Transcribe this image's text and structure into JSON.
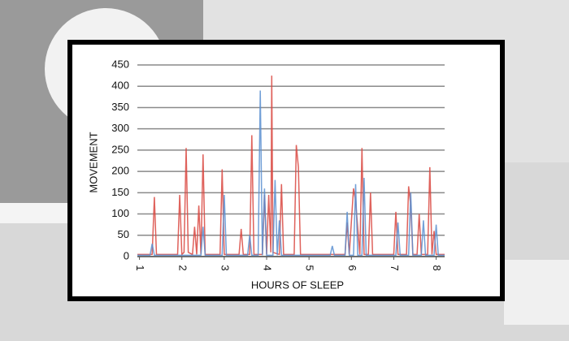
{
  "chart_data": {
    "type": "line",
    "xlabel": "HOURS OF SLEEP",
    "ylabel": "MOVEMENT",
    "xlim": [
      0.95,
      8.2
    ],
    "xticks": [
      1,
      2,
      3,
      4,
      5,
      6,
      7,
      8
    ],
    "ylim": [
      0,
      450
    ],
    "yticks": [
      0,
      50,
      100,
      150,
      200,
      250,
      300,
      350,
      400,
      450
    ],
    "grid": true,
    "series": [
      {
        "color": "#d9463f",
        "x": [
          0.95,
          1.3,
          1.35,
          1.4,
          1.9,
          1.95,
          2.0,
          2.05,
          2.1,
          2.15,
          2.25,
          2.3,
          2.35,
          2.4,
          2.45,
          2.5,
          2.55,
          2.9,
          2.95,
          3.0,
          3.35,
          3.4,
          3.45,
          3.6,
          3.65,
          3.7,
          3.9,
          3.95,
          4.0,
          4.05,
          4.1,
          4.12,
          4.15,
          4.3,
          4.35,
          4.4,
          4.65,
          4.7,
          4.75,
          4.8,
          5.85,
          5.9,
          5.95,
          6.05,
          6.1,
          6.2,
          6.25,
          6.3,
          6.4,
          6.45,
          6.5,
          7.0,
          7.05,
          7.1,
          7.3,
          7.35,
          7.4,
          7.45,
          7.55,
          7.6,
          7.65,
          7.8,
          7.85,
          7.9,
          7.95,
          8.0,
          8.2
        ],
        "values": [
          5,
          5,
          140,
          5,
          5,
          145,
          5,
          10,
          255,
          10,
          5,
          70,
          5,
          120,
          5,
          240,
          5,
          5,
          205,
          5,
          5,
          65,
          5,
          5,
          285,
          5,
          5,
          145,
          5,
          145,
          10,
          425,
          10,
          5,
          170,
          5,
          5,
          262,
          210,
          5,
          5,
          80,
          5,
          160,
          130,
          5,
          255,
          5,
          5,
          150,
          5,
          5,
          105,
          5,
          5,
          165,
          120,
          5,
          5,
          100,
          5,
          5,
          210,
          5,
          60,
          5,
          5
        ]
      },
      {
        "color": "#5b8fd0",
        "x": [
          0.95,
          1.25,
          1.3,
          1.35,
          2.45,
          2.5,
          2.55,
          2.95,
          3.0,
          3.05,
          3.55,
          3.6,
          3.65,
          3.8,
          3.85,
          3.9,
          3.95,
          4.0,
          4.15,
          4.2,
          4.25,
          4.3,
          4.35,
          5.5,
          5.55,
          5.6,
          5.85,
          5.9,
          5.95,
          6.05,
          6.1,
          6.15,
          6.25,
          6.3,
          6.35,
          7.05,
          7.1,
          7.15,
          7.35,
          7.4,
          7.45,
          7.65,
          7.7,
          7.75,
          7.95,
          8.0,
          8.05,
          8.2
        ],
        "values": [
          3,
          3,
          30,
          3,
          3,
          70,
          3,
          3,
          145,
          3,
          3,
          50,
          3,
          3,
          390,
          3,
          160,
          3,
          3,
          180,
          3,
          85,
          3,
          3,
          25,
          3,
          3,
          105,
          3,
          3,
          170,
          3,
          3,
          185,
          3,
          3,
          80,
          3,
          3,
          150,
          3,
          3,
          85,
          3,
          3,
          75,
          3,
          3
        ]
      }
    ]
  }
}
